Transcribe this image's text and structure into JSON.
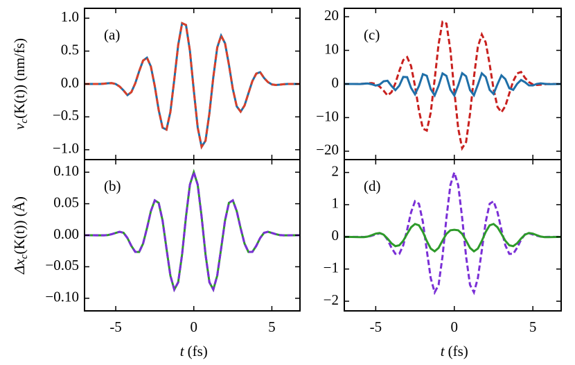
{
  "chart_data": [
    {
      "type": "line",
      "panel_label": "(a)",
      "ylabel": [
        "v",
        "c",
        "(K(t)) (nm/fs)"
      ],
      "xlim": [
        -7,
        6.8
      ],
      "xticks": [
        -5,
        0,
        5
      ],
      "xtick_labels": false,
      "ylim": [
        -1.15,
        1.15
      ],
      "yticks": [
        {
          "value": -1,
          "label": "−1.0"
        },
        {
          "value": -0.5,
          "label": "−0.5"
        },
        {
          "value": 0,
          "label": "0.0"
        },
        {
          "value": 0.5,
          "label": "0.5"
        },
        {
          "value": 1,
          "label": "1.0"
        }
      ],
      "x": [
        -7,
        -6,
        -5.75,
        -5.5,
        -5.25,
        -5,
        -4.75,
        -4.5,
        -4.25,
        -4,
        -3.75,
        -3.5,
        -3.25,
        -3,
        -2.75,
        -2.5,
        -2.25,
        -2,
        -1.75,
        -1.5,
        -1.25,
        -1,
        -0.75,
        -0.5,
        -0.25,
        0,
        0.25,
        0.5,
        0.75,
        1,
        1.25,
        1.5,
        1.75,
        2,
        2.25,
        2.5,
        2.75,
        3,
        3.25,
        3.5,
        3.75,
        4,
        4.25,
        4.5,
        4.75,
        5,
        5.25,
        5.5,
        5.75,
        6,
        6.8
      ],
      "series": [
        {
          "color": "#1f6fa8",
          "dashed": false,
          "values": [
            0,
            0,
            0.004,
            0.011,
            0.013,
            -0.001,
            -0.039,
            -0.099,
            -0.17,
            -0.124,
            0.01,
            0.194,
            0.355,
            0.399,
            0.266,
            -0.032,
            -0.395,
            -0.664,
            -0.694,
            -0.426,
            0.067,
            0.592,
            0.924,
            0.897,
            0.505,
            -0.099,
            -0.664,
            -0.956,
            -0.863,
            -0.445,
            0.103,
            0.553,
            0.735,
            0.618,
            0.293,
            -0.078,
            -0.341,
            -0.421,
            -0.328,
            -0.141,
            0.043,
            0.157,
            0.179,
            0.091,
            0.028,
            -0.007,
            -0.016,
            -0.011,
            -0.004,
            0,
            0
          ]
        },
        {
          "color": "#d8402a",
          "dashed": true,
          "values": [
            0,
            0,
            0.004,
            0.011,
            0.013,
            -0.001,
            -0.039,
            -0.099,
            -0.17,
            -0.124,
            0.01,
            0.194,
            0.355,
            0.399,
            0.266,
            -0.032,
            -0.395,
            -0.664,
            -0.694,
            -0.426,
            0.067,
            0.592,
            0.924,
            0.897,
            0.505,
            -0.099,
            -0.664,
            -0.956,
            -0.863,
            -0.445,
            0.103,
            0.553,
            0.735,
            0.618,
            0.293,
            -0.078,
            -0.341,
            -0.421,
            -0.328,
            -0.141,
            0.043,
            0.157,
            0.179,
            0.091,
            0.028,
            -0.007,
            -0.016,
            -0.011,
            -0.004,
            0,
            0
          ]
        }
      ]
    },
    {
      "type": "line",
      "panel_label": "(b)",
      "ylabel": [
        "Δx",
        "c",
        "(K(t)) (Å)"
      ],
      "xlabel": [
        "t",
        "(fs)"
      ],
      "xlim": [
        -7,
        6.8
      ],
      "xticks": [
        -5,
        0,
        5
      ],
      "xtick_labels": true,
      "ylim": [
        -0.12,
        0.12
      ],
      "yticks": [
        {
          "value": -0.1,
          "label": "−0.10"
        },
        {
          "value": -0.05,
          "label": "−0.05"
        },
        {
          "value": 0,
          "label": "0.00"
        },
        {
          "value": 0.05,
          "label": "0.05"
        },
        {
          "value": 0.1,
          "label": "0.10"
        }
      ],
      "x": [
        -7,
        -6,
        -5.75,
        -5.5,
        -5.25,
        -5,
        -4.75,
        -4.5,
        -4.25,
        -4,
        -3.75,
        -3.5,
        -3.25,
        -3,
        -2.75,
        -2.5,
        -2.25,
        -2,
        -1.75,
        -1.5,
        -1.25,
        -1,
        -0.75,
        -0.5,
        -0.25,
        0,
        0.25,
        0.5,
        0.75,
        1,
        1.25,
        1.5,
        1.75,
        2,
        2.25,
        2.5,
        2.75,
        3,
        3.25,
        3.5,
        3.75,
        4,
        4.25,
        4.5,
        4.75,
        5,
        5.25,
        5.5,
        5.75,
        6,
        6.8
      ],
      "series": [
        {
          "color": "#2e9a2a",
          "dashed": false,
          "values": [
            0,
            -0.0001,
            -0.0002,
            0.0003,
            0.0017,
            0.0037,
            0.0055,
            0.0039,
            -0.0044,
            -0.0169,
            -0.0264,
            -0.0265,
            -0.0133,
            0.0111,
            0.0382,
            0.0553,
            0.0514,
            0.0234,
            -0.0211,
            -0.0641,
            -0.0862,
            -0.0746,
            -0.0305,
            0.0295,
            0.0802,
            0.1,
            0.0802,
            0.0295,
            -0.0305,
            -0.0746,
            -0.0862,
            -0.0641,
            -0.0211,
            0.0234,
            0.0514,
            0.0553,
            0.0382,
            0.0111,
            -0.0133,
            -0.0265,
            -0.0264,
            -0.0169,
            -0.0044,
            0.0039,
            0.0055,
            0.0037,
            0.0017,
            0.0003,
            -0.0002,
            -0.0001,
            0
          ]
        },
        {
          "color": "#7a2fd6",
          "dashed": true,
          "values": [
            0,
            -0.0001,
            -0.0002,
            0.0003,
            0.0017,
            0.0037,
            0.0055,
            0.0039,
            -0.0044,
            -0.0169,
            -0.0264,
            -0.0265,
            -0.0133,
            0.0111,
            0.0382,
            0.0553,
            0.0514,
            0.0234,
            -0.0211,
            -0.0641,
            -0.0862,
            -0.0746,
            -0.0305,
            0.0295,
            0.0802,
            0.1,
            0.0802,
            0.0295,
            -0.0305,
            -0.0746,
            -0.0862,
            -0.0641,
            -0.0211,
            0.0234,
            0.0514,
            0.0553,
            0.0382,
            0.0111,
            -0.0133,
            -0.0265,
            -0.0264,
            -0.0169,
            -0.0044,
            0.0039,
            0.0055,
            0.0037,
            0.0017,
            0.0003,
            -0.0002,
            -0.0001,
            0
          ]
        }
      ]
    },
    {
      "type": "line",
      "panel_label": "(c)",
      "xlim": [
        -7,
        6.8
      ],
      "xticks": [
        -5,
        0,
        5
      ],
      "xtick_labels": false,
      "ylim": [
        -22.5,
        22.5
      ],
      "yticks": [
        {
          "value": -20,
          "label": "−20"
        },
        {
          "value": -10,
          "label": "−10"
        },
        0,
        10,
        20
      ],
      "x": [
        -7,
        -6,
        -5.75,
        -5.5,
        -5.25,
        -5,
        -4.75,
        -4.5,
        -4.25,
        -4,
        -3.75,
        -3.5,
        -3.25,
        -3,
        -2.75,
        -2.5,
        -2.25,
        -2,
        -1.75,
        -1.5,
        -1.25,
        -1,
        -0.75,
        -0.5,
        -0.25,
        0,
        0.25,
        0.5,
        0.75,
        1,
        1.25,
        1.5,
        1.75,
        2,
        2.25,
        2.5,
        2.75,
        3,
        3.25,
        3.5,
        3.75,
        4,
        4.25,
        4.5,
        4.75,
        5,
        5.25,
        5.5,
        5.75,
        6,
        6.8
      ],
      "series": [
        {
          "color": "#c8201e",
          "dashed": true,
          "values": [
            0,
            0,
            0.08,
            0.22,
            0.26,
            -0.02,
            -0.78,
            -1.98,
            -3.41,
            -2.47,
            0.19,
            3.87,
            7.09,
            7.97,
            5.32,
            -0.63,
            -7.89,
            -13.27,
            -13.87,
            -8.52,
            1.35,
            11.84,
            18.47,
            17.95,
            10.11,
            -1.98,
            -13.28,
            -19.11,
            -17.27,
            -8.89,
            2.06,
            11.06,
            14.71,
            12.35,
            5.86,
            -1.55,
            -6.83,
            -8.41,
            -6.57,
            -2.83,
            0.85,
            3.14,
            3.58,
            1.82,
            0.56,
            -0.14,
            -0.32,
            -0.22,
            -0.08,
            0,
            0
          ]
        },
        {
          "color": "#1f6fa8",
          "dashed": false,
          "values": [
            0,
            -0.02,
            0.08,
            0.15,
            -0.1,
            -0.47,
            -0.18,
            0.79,
            0.95,
            -0.57,
            -1.84,
            -0.51,
            2.1,
            2.02,
            -1.19,
            -3.07,
            -0.6,
            2.92,
            2.44,
            -1.53,
            -3.43,
            -0.53,
            3.14,
            2.41,
            -1.69,
            -3.43,
            -0.38,
            3.2,
            2.3,
            -1.82,
            -3.37,
            -0.22,
            3.17,
            2.08,
            -1.78,
            -2.97,
            -0.07,
            2.55,
            1.45,
            -1.28,
            -1.75,
            0.03,
            1.18,
            0.53,
            -0.42,
            -0.44,
            0.02,
            0.18,
            0.05,
            -0.04,
            0
          ]
        }
      ]
    },
    {
      "type": "line",
      "panel_label": "(d)",
      "xlabel": [
        "t",
        "(fs)"
      ],
      "xlim": [
        -7,
        6.8
      ],
      "xticks": [
        -5,
        0,
        5
      ],
      "xtick_labels": true,
      "ylim": [
        -2.3,
        2.4
      ],
      "yticks": [
        {
          "value": -2,
          "label": "−2"
        },
        {
          "value": -1,
          "label": "−1"
        },
        0,
        1,
        2
      ],
      "x": [
        -7,
        -6,
        -5.75,
        -5.5,
        -5.25,
        -5,
        -4.75,
        -4.5,
        -4.25,
        -4,
        -3.75,
        -3.5,
        -3.25,
        -3,
        -2.75,
        -2.5,
        -2.25,
        -2,
        -1.75,
        -1.5,
        -1.25,
        -1,
        -0.75,
        -0.5,
        -0.25,
        0,
        0.25,
        0.5,
        0.75,
        1,
        1.25,
        1.5,
        1.75,
        2,
        2.25,
        2.5,
        2.75,
        3,
        3.25,
        3.5,
        3.75,
        4,
        4.25,
        4.5,
        4.75,
        5,
        5.25,
        5.5,
        5.75,
        6,
        6.8
      ],
      "series": [
        {
          "color": "#7a2fd6",
          "dashed": true,
          "values": [
            0,
            -0.002,
            -0.004,
            0.006,
            0.034,
            0.074,
            0.11,
            0.078,
            -0.088,
            -0.337,
            -0.527,
            -0.529,
            -0.265,
            0.223,
            0.764,
            1.106,
            1.028,
            0.467,
            -0.422,
            -1.283,
            -1.725,
            -1.492,
            -0.609,
            0.589,
            1.604,
            2,
            1.604,
            0.589,
            -0.609,
            -1.492,
            -1.725,
            -1.283,
            -0.422,
            0.467,
            1.028,
            1.106,
            0.764,
            0.223,
            -0.265,
            -0.529,
            -0.527,
            -0.337,
            -0.088,
            0.078,
            0.11,
            0.074,
            0.034,
            0.006,
            -0.004,
            -0.002,
            0
          ]
        },
        {
          "color": "#2e9a2a",
          "dashed": false,
          "values": [
            0,
            -0.009,
            -0.008,
            0.009,
            0.053,
            0.1,
            0.119,
            0.068,
            -0.053,
            -0.199,
            -0.289,
            -0.262,
            -0.123,
            0.094,
            0.297,
            0.4,
            0.357,
            0.154,
            -0.13,
            -0.365,
            -0.45,
            -0.344,
            -0.116,
            0.09,
            0.202,
            0.22,
            0.202,
            0.09,
            -0.116,
            -0.344,
            -0.45,
            -0.365,
            -0.13,
            0.154,
            0.357,
            0.4,
            0.297,
            0.094,
            -0.123,
            -0.262,
            -0.289,
            -0.199,
            -0.053,
            0.068,
            0.119,
            0.1,
            0.053,
            0.009,
            -0.008,
            -0.009,
            0
          ]
        }
      ]
    }
  ]
}
